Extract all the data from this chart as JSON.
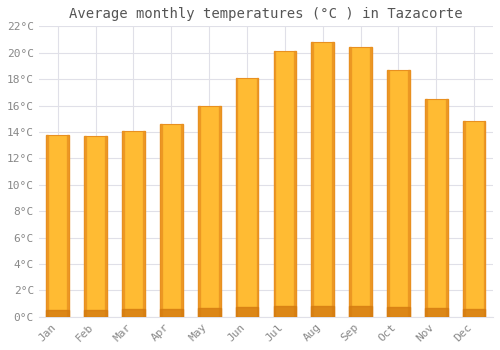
{
  "title": "Average monthly temperatures (°C ) in Tazacorte",
  "months": [
    "Jan",
    "Feb",
    "Mar",
    "Apr",
    "May",
    "Jun",
    "Jul",
    "Aug",
    "Sep",
    "Oct",
    "Nov",
    "Dec"
  ],
  "values": [
    13.8,
    13.7,
    14.1,
    14.6,
    16.0,
    18.1,
    20.1,
    20.8,
    20.4,
    18.7,
    16.5,
    14.8
  ],
  "bar_color_main": "#FFBB33",
  "bar_color_edge": "#E89020",
  "bar_color_dark": "#D47B10",
  "ylim": [
    0,
    22
  ],
  "yticks": [
    0,
    2,
    4,
    6,
    8,
    10,
    12,
    14,
    16,
    18,
    20,
    22
  ],
  "background_color": "#ffffff",
  "grid_color": "#e0e0e8",
  "title_fontsize": 10,
  "tick_fontsize": 8,
  "font_family": "monospace",
  "bar_width": 0.6
}
